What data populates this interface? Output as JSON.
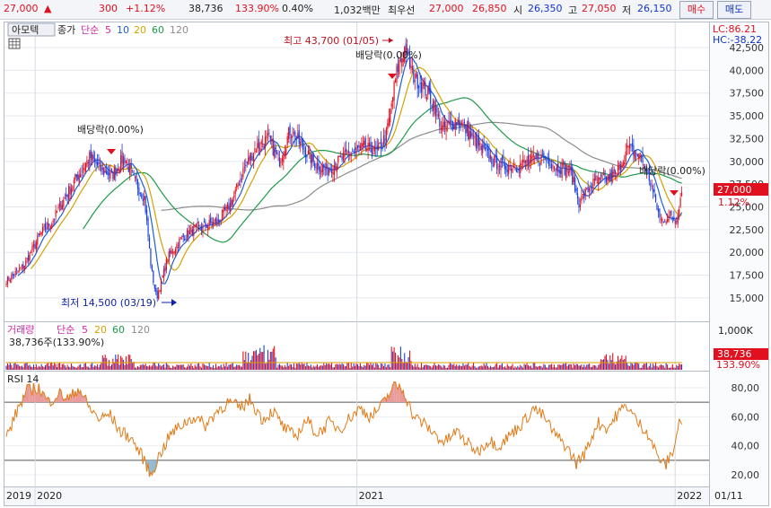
{
  "quote": {
    "price": "27,000",
    "up_arrow": "▲",
    "change": "300",
    "change_pct": "+1.12%",
    "volume": "38,736",
    "volume_ratio": "133.90%",
    "turnover": "0.40%",
    "trade_value": "1,032백만",
    "best_ask_label": "최우선",
    "best_ask": "27,000",
    "best_bid": "26,850",
    "open_label": "시",
    "open": "26,350",
    "high_label": "고",
    "high": "27,050",
    "low_label": "저",
    "low": "26,150",
    "buy_label": "매수",
    "sell_label": "매도"
  },
  "legend": {
    "stock_name": "아모텍",
    "price_type": "종가",
    "ma_type": "단순",
    "ma5": "5",
    "ma10": "10",
    "ma20": "20",
    "ma60": "60",
    "ma120": "120",
    "vol_title": "거래량",
    "vol_ma_type": "단순",
    "vol_ma5": "5",
    "vol_ma20": "20",
    "vol_ma60": "60",
    "vol_ma120": "120",
    "vol_current": "38,736주(133.90%)",
    "rsi_title": "RSI 14"
  },
  "annotations": {
    "high_text": "최고 43,700 (01/05)",
    "low_text": "최저 14,500 (03/19)",
    "div1": "배당락(0.00%)",
    "div2": "배당락(0.00%)",
    "div3": "배당락(0.00%)"
  },
  "right_scale": {
    "lc": "LC:86.21",
    "hc": "HC:-38.22",
    "price_box": "27,000",
    "pct_box": "1.12%",
    "vol_box": "38,736",
    "vol_pct": "133.90%"
  },
  "colors": {
    "up": "#e0101e",
    "down": "#1a3fe0",
    "ma5": "#d12aa4",
    "ma10": "#1f5fd1",
    "ma20": "#d6a100",
    "ma60": "#1f9a4a",
    "ma120": "#8c8c8c",
    "rsi": "#e07b16",
    "rsi_over": "#e89a9a",
    "rsi_under": "#8fb8cf"
  },
  "chart_data": [
    {
      "type": "candlestick",
      "title": "아모텍",
      "ylim": [
        13000,
        44500
      ],
      "y_ticks": [
        15000,
        17500,
        20000,
        22500,
        25000,
        27500,
        30000,
        32500,
        35000,
        37500,
        40000,
        42500
      ],
      "y_tick_labels": [
        "15,000",
        "17,500",
        "20,000",
        "22,500",
        "25,000",
        "27,500",
        "30,000",
        "32,500",
        "35,000",
        "37,500",
        "40,000",
        "42,500"
      ],
      "x_labels": [
        "2019",
        "2020",
        "2021",
        "2022",
        "01/11"
      ],
      "close_path": [
        [
          "2019-12-02",
          17000
        ],
        [
          "2019-12-20",
          18500
        ],
        [
          "2020-01-08",
          22000
        ],
        [
          "2020-01-22",
          23500
        ],
        [
          "2020-02-05",
          26000
        ],
        [
          "2020-02-20",
          28500
        ],
        [
          "2020-03-05",
          30500
        ],
        [
          "2020-03-18",
          29000
        ],
        [
          "2020-03-30",
          28500
        ],
        [
          "2020-04-13",
          30500
        ],
        [
          "2020-04-24",
          28000
        ],
        [
          "2020-05-06",
          26000
        ],
        [
          "2020-05-14",
          18000
        ],
        [
          "2020-05-20",
          15000
        ],
        [
          "2020-06-02",
          19500
        ],
        [
          "2020-06-17",
          21500
        ],
        [
          "2020-07-01",
          22500
        ],
        [
          "2020-07-16",
          23000
        ],
        [
          "2020-07-30",
          23500
        ],
        [
          "2020-08-14",
          25500
        ],
        [
          "2020-08-27",
          29000
        ],
        [
          "2020-09-10",
          31500
        ],
        [
          "2020-09-25",
          32500
        ],
        [
          "2020-10-07",
          30000
        ],
        [
          "2020-10-20",
          33500
        ],
        [
          "2020-11-03",
          31500
        ],
        [
          "2020-11-15",
          30000
        ],
        [
          "2020-11-30",
          29000
        ],
        [
          "2020-12-14",
          30000
        ],
        [
          "2020-12-28",
          31000
        ],
        [
          "2021-01-12",
          31500
        ],
        [
          "2021-01-27",
          31000
        ],
        [
          "2021-02-07",
          33000
        ],
        [
          "2021-02-19",
          40000
        ],
        [
          "2021-02-28",
          42500
        ],
        [
          "2021-03-09",
          39500
        ],
        [
          "2021-03-19",
          38500
        ],
        [
          "2021-04-01",
          36500
        ],
        [
          "2021-04-12",
          33500
        ],
        [
          "2021-04-29",
          34500
        ],
        [
          "2021-05-13",
          33000
        ],
        [
          "2021-05-25",
          31500
        ],
        [
          "2021-06-09",
          30000
        ],
        [
          "2021-06-22",
          29500
        ],
        [
          "2021-07-05",
          29500
        ],
        [
          "2021-07-20",
          30000
        ],
        [
          "2021-08-05",
          30500
        ],
        [
          "2021-08-20",
          29500
        ],
        [
          "2021-09-05",
          29000
        ],
        [
          "2021-09-15",
          25500
        ],
        [
          "2021-09-30",
          27500
        ],
        [
          "2021-10-15",
          28000
        ],
        [
          "2021-10-27",
          28500
        ],
        [
          "2021-11-10",
          31500
        ],
        [
          "2021-11-25",
          30500
        ],
        [
          "2021-12-05",
          28000
        ],
        [
          "2021-12-17",
          23500
        ],
        [
          "2021-12-28",
          24000
        ],
        [
          "2022-01-04",
          23500
        ],
        [
          "2022-01-11",
          27000
        ]
      ]
    },
    {
      "type": "bar",
      "title": "거래량",
      "ylim": [
        0,
        1000
      ],
      "y_ticks": [
        1000
      ],
      "y_tick_labels": [
        "1,000K"
      ],
      "note": "daily volume bars, mostly low with spikes near early 2020 and early 2021"
    },
    {
      "type": "line",
      "title": "RSI 14",
      "ylim": [
        10,
        88
      ],
      "y_ticks": [
        20,
        40,
        60,
        80
      ],
      "y_tick_labels": [
        "20,00",
        "40,00",
        "60,00",
        "80,00"
      ],
      "reference_lines": [
        30,
        70
      ],
      "points": [
        [
          "2019-12-02",
          48
        ],
        [
          "2019-12-13",
          65
        ],
        [
          "2019-12-24",
          78
        ],
        [
          "2020-01-06",
          80
        ],
        [
          "2020-01-17",
          70
        ],
        [
          "2020-01-29",
          76
        ],
        [
          "2020-02-10",
          72
        ],
        [
          "2020-02-21",
          80
        ],
        [
          "2020-03-04",
          66
        ],
        [
          "2020-03-16",
          58
        ],
        [
          "2020-03-27",
          62
        ],
        [
          "2020-04-08",
          50
        ],
        [
          "2020-04-20",
          46
        ],
        [
          "2020-04-30",
          36
        ],
        [
          "2020-05-08",
          28
        ],
        [
          "2020-05-13",
          19
        ],
        [
          "2020-05-22",
          32
        ],
        [
          "2020-06-05",
          48
        ],
        [
          "2020-06-19",
          55
        ],
        [
          "2020-07-02",
          60
        ],
        [
          "2020-07-15",
          54
        ],
        [
          "2020-07-28",
          64
        ],
        [
          "2020-08-10",
          70
        ],
        [
          "2020-08-24",
          66
        ],
        [
          "2020-09-04",
          72
        ],
        [
          "2020-09-18",
          58
        ],
        [
          "2020-09-30",
          64
        ],
        [
          "2020-10-13",
          52
        ],
        [
          "2020-10-26",
          46
        ],
        [
          "2020-11-07",
          58
        ],
        [
          "2020-11-20",
          48
        ],
        [
          "2020-12-03",
          56
        ],
        [
          "2020-12-16",
          52
        ],
        [
          "2020-12-28",
          60
        ],
        [
          "2021-01-08",
          66
        ],
        [
          "2021-01-20",
          60
        ],
        [
          "2021-02-02",
          68
        ],
        [
          "2021-02-16",
          82
        ],
        [
          "2021-02-26",
          79
        ],
        [
          "2021-03-10",
          60
        ],
        [
          "2021-03-22",
          55
        ],
        [
          "2021-04-03",
          48
        ],
        [
          "2021-04-14",
          42
        ],
        [
          "2021-04-28",
          50
        ],
        [
          "2021-05-10",
          42
        ],
        [
          "2021-05-22",
          36
        ],
        [
          "2021-06-04",
          44
        ],
        [
          "2021-06-16",
          40
        ],
        [
          "2021-06-29",
          48
        ],
        [
          "2021-07-13",
          56
        ],
        [
          "2021-07-25",
          66
        ],
        [
          "2021-08-06",
          60
        ],
        [
          "2021-08-18",
          48
        ],
        [
          "2021-08-31",
          40
        ],
        [
          "2021-09-12",
          28
        ],
        [
          "2021-09-23",
          36
        ],
        [
          "2021-10-06",
          56
        ],
        [
          "2021-10-18",
          52
        ],
        [
          "2021-10-29",
          62
        ],
        [
          "2021-11-09",
          68
        ],
        [
          "2021-11-21",
          56
        ],
        [
          "2021-12-02",
          50
        ],
        [
          "2021-12-13",
          34
        ],
        [
          "2021-12-22",
          26
        ],
        [
          "2021-12-30",
          34
        ],
        [
          "2022-01-04",
          45
        ],
        [
          "2022-01-08",
          58
        ],
        [
          "2022-01-11",
          57
        ]
      ]
    }
  ]
}
